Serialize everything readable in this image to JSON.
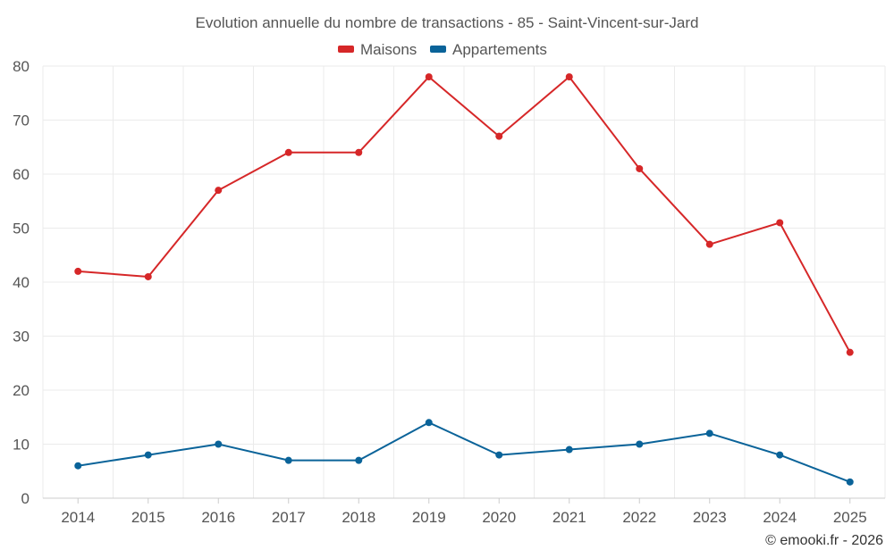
{
  "chart_data": {
    "type": "line",
    "title": "Evolution annuelle du nombre de transactions - 85 - Saint-Vincent-sur-Jard",
    "categories": [
      "2014",
      "2015",
      "2016",
      "2017",
      "2018",
      "2019",
      "2020",
      "2021",
      "2022",
      "2023",
      "2024",
      "2025"
    ],
    "series": [
      {
        "name": "Maisons",
        "color": "#d62728",
        "values": [
          42,
          41,
          57,
          64,
          64,
          78,
          67,
          78,
          61,
          47,
          51,
          27
        ]
      },
      {
        "name": "Appartements",
        "color": "#0a6399",
        "values": [
          6,
          8,
          10,
          7,
          7,
          14,
          8,
          9,
          10,
          12,
          8,
          3
        ]
      }
    ],
    "ylim": [
      0,
      80
    ],
    "yticks": [
      0,
      10,
      20,
      30,
      40,
      50,
      60,
      70,
      80
    ],
    "xlabel": "",
    "ylabel": "",
    "grid": true,
    "legend_position": "top-center"
  },
  "credit": "© emooki.fr - 2026"
}
